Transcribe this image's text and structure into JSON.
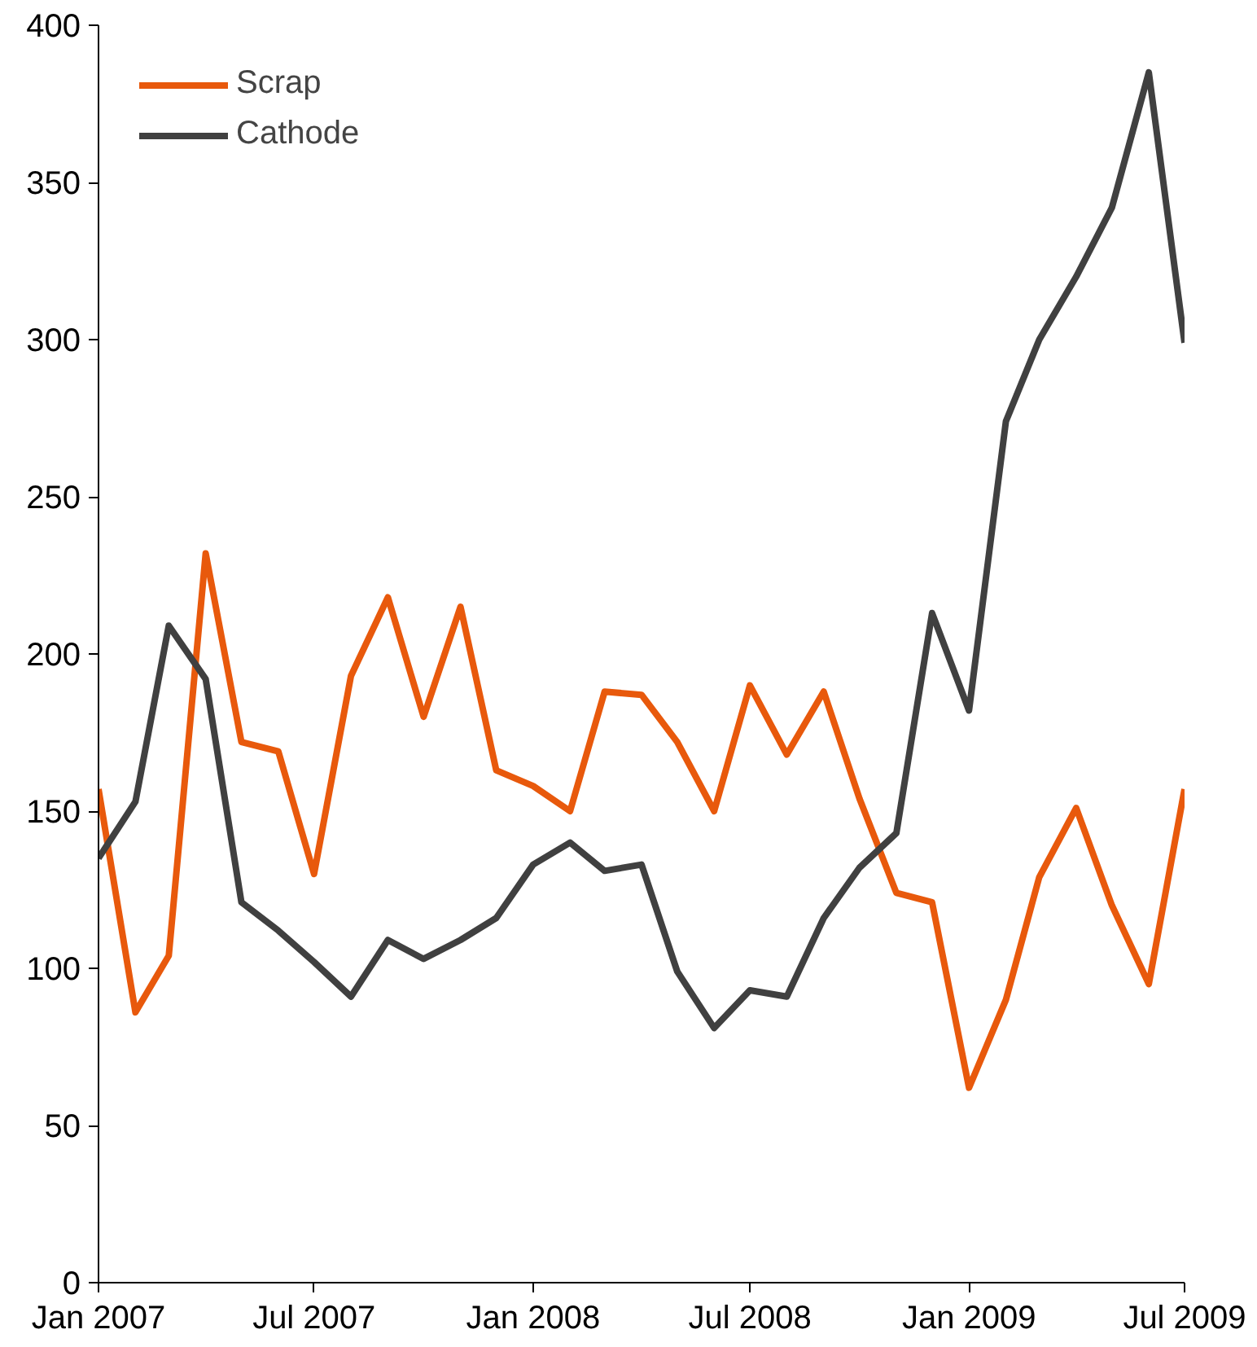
{
  "chart_data": {
    "type": "line",
    "x": [
      "2007-01",
      "2007-02",
      "2007-03",
      "2007-04",
      "2007-05",
      "2007-06",
      "2007-07",
      "2007-08",
      "2007-09",
      "2007-10",
      "2007-11",
      "2007-12",
      "2008-01",
      "2008-02",
      "2008-03",
      "2008-04",
      "2008-05",
      "2008-06",
      "2008-07",
      "2008-08",
      "2008-09",
      "2008-10",
      "2008-11",
      "2008-12",
      "2009-01",
      "2009-02",
      "2009-03",
      "2009-04",
      "2009-05",
      "2009-06",
      "2009-07"
    ],
    "series": [
      {
        "name": "Scrap",
        "color": "#e8590c",
        "values": [
          157,
          86,
          104,
          232,
          172,
          169,
          130,
          193,
          218,
          180,
          215,
          163,
          158,
          150,
          188,
          187,
          172,
          150,
          190,
          168,
          188,
          154,
          124,
          121,
          62,
          90,
          129,
          151,
          120,
          95,
          157
        ]
      },
      {
        "name": "Cathode",
        "color": "#404040",
        "values": [
          135,
          153,
          209,
          192,
          121,
          112,
          102,
          91,
          109,
          103,
          109,
          116,
          133,
          140,
          131,
          133,
          99,
          81,
          93,
          91,
          116,
          132,
          143,
          213,
          182,
          274,
          300,
          320,
          342,
          385,
          299
        ]
      }
    ],
    "xlim": [
      "2007-01",
      "2009-07"
    ],
    "xticks": [
      {
        "value": "2007-01",
        "label": "Jan 2007"
      },
      {
        "value": "2007-07",
        "label": "Jul 2007"
      },
      {
        "value": "2008-01",
        "label": "Jan 2008"
      },
      {
        "value": "2008-07",
        "label": "Jul 2008"
      },
      {
        "value": "2009-01",
        "label": "Jan 2009"
      },
      {
        "value": "2009-07",
        "label": "Jul 2009"
      }
    ],
    "ylim": [
      0,
      400
    ],
    "yticks": [
      0,
      50,
      100,
      150,
      200,
      250,
      300,
      350,
      400
    ],
    "grid": false,
    "legend": "top left",
    "marker": "none",
    "line_style": "solid"
  }
}
